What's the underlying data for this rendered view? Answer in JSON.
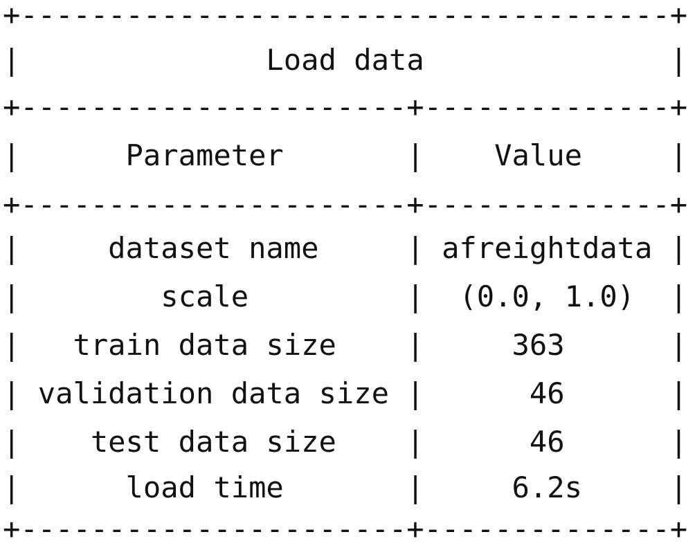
{
  "table": {
    "title": "Load data",
    "headers": [
      "Parameter",
      "Value"
    ],
    "rows": [
      {
        "parameter": "dataset name",
        "value": "afreightdata"
      },
      {
        "parameter": "scale",
        "value": "(0.0, 1.0)"
      },
      {
        "parameter": "train data size",
        "value": "363"
      },
      {
        "parameter": "validation data size",
        "value": "46"
      },
      {
        "parameter": "test data size",
        "value": "46"
      },
      {
        "parameter": "load time",
        "value": "6.2s"
      }
    ]
  }
}
